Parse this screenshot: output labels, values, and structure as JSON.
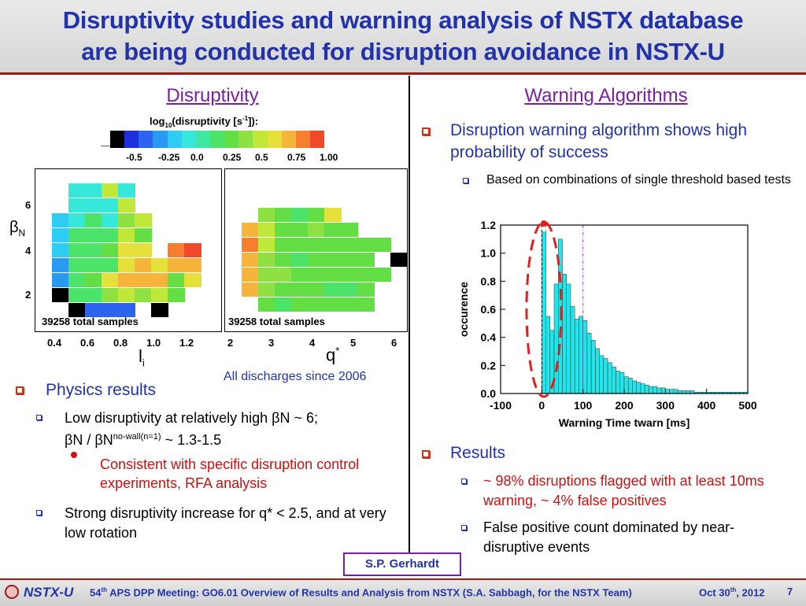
{
  "header": {
    "title_line1": "Disruptivity studies and warning analysis of NSTX database",
    "title_line2": "are being conducted for disruption avoidance in NSTX-U"
  },
  "left": {
    "section_title": "Disruptivity",
    "colorbar": {
      "label": "log10(disruptivity [s-1]):",
      "ticks": [
        "-0.5",
        "-0.25",
        "0.0",
        "0.25",
        "0.5",
        "0.75",
        "1.00"
      ],
      "colors": [
        "#000000",
        "#1f2fe0",
        "#2c63f0",
        "#2a9af0",
        "#2ecbf2",
        "#35e8d9",
        "#3fe8a0",
        "#4ce36a",
        "#63df45",
        "#8fe042",
        "#c0e83a",
        "#e5e03a",
        "#f5b43a",
        "#f57f2f",
        "#f04a2a"
      ]
    },
    "plot1": {
      "ylabel": "βN",
      "xlabel": "li",
      "ticks_x": [
        "0.4",
        "0.6",
        "0.8",
        "1.0",
        "1.2"
      ],
      "ticks_y": [
        "6",
        "4",
        "2"
      ],
      "samples": "39258 total samples"
    },
    "plot2": {
      "xlabel": "q*",
      "ticks_x": [
        "2",
        "3",
        "4",
        "5",
        "6"
      ],
      "samples": "39258 total samples"
    },
    "caption": "All discharges since 2006",
    "physics": {
      "heading": "Physics results",
      "item1_a": "Low disruptivity at relatively high ",
      "item1_b": "βN ~ 6;",
      "item1_c": "βN / βN",
      "item1_sup": "no-wall(n=1)",
      "item1_d": " ~ 1.3-1.5",
      "sub1": "Consistent with specific disruption control experiments, RFA analysis",
      "item2": "Strong disruptivity increase for q* < 2.5, and at very low rotation"
    }
  },
  "right": {
    "section_title": "Warning Algorithms",
    "bullet1": "Disruption warning algorithm shows high probability of success",
    "sub1": "Based on combinations of single threshold based tests",
    "results_heading": "Results",
    "res1": "~ 98% disruptions flagged with at least 10ms warning, ~ 4% false positives",
    "res2": "False positive count dominated by near-disruptive events",
    "author": "S.P. Gerhardt"
  },
  "chart_data": {
    "type": "bar",
    "xlabel": "Warning Time twarn [ms]",
    "ylabel": "occurence",
    "xlim": [
      -100,
      500
    ],
    "ylim": [
      0,
      1.2
    ],
    "x_ticks": [
      "-100",
      "0",
      "100",
      "200",
      "300",
      "400",
      "500"
    ],
    "y_ticks": [
      "0.0",
      "0.2",
      "0.4",
      "0.6",
      "0.8",
      "1.0",
      "1.2"
    ],
    "bin_width_ms": 10,
    "bin_starts": [
      0,
      10,
      20,
      30,
      40,
      50,
      60,
      70,
      80,
      90,
      100,
      110,
      120,
      130,
      140,
      150,
      160,
      170,
      180,
      190,
      200,
      210,
      220,
      230,
      240,
      250,
      260,
      270,
      280,
      290,
      300,
      310,
      320,
      330,
      340,
      350,
      360,
      370,
      380,
      390,
      400,
      410,
      420,
      430,
      440,
      450,
      460,
      470,
      480,
      490
    ],
    "values": [
      1.15,
      0.55,
      0.45,
      0.78,
      1.1,
      0.85,
      0.78,
      0.62,
      0.53,
      0.55,
      0.52,
      0.43,
      0.38,
      0.32,
      0.27,
      0.25,
      0.22,
      0.19,
      0.16,
      0.15,
      0.12,
      0.11,
      0.09,
      0.08,
      0.07,
      0.06,
      0.05,
      0.05,
      0.04,
      0.04,
      0.03,
      0.03,
      0.03,
      0.02,
      0.02,
      0.02,
      0.02,
      0.01,
      0.01,
      0.01,
      0.01,
      0.01,
      0.01,
      0.01,
      0.01,
      0.01,
      0.01,
      0.01,
      0.01,
      0.01
    ],
    "bar_color": "#22e5ea",
    "grid": false
  },
  "footer": {
    "logo": "NSTX-U",
    "meeting_pre": "54",
    "meeting_sup": "th",
    "meeting_text": " APS DPP Meeting: GO6.01 Overview of Results and Analysis from NSTX (S.A. Sabbagh, for the NSTX Team)",
    "date_pre": "Oct 30",
    "date_sup": "th",
    "date_post": ", 2012",
    "page": "7"
  }
}
